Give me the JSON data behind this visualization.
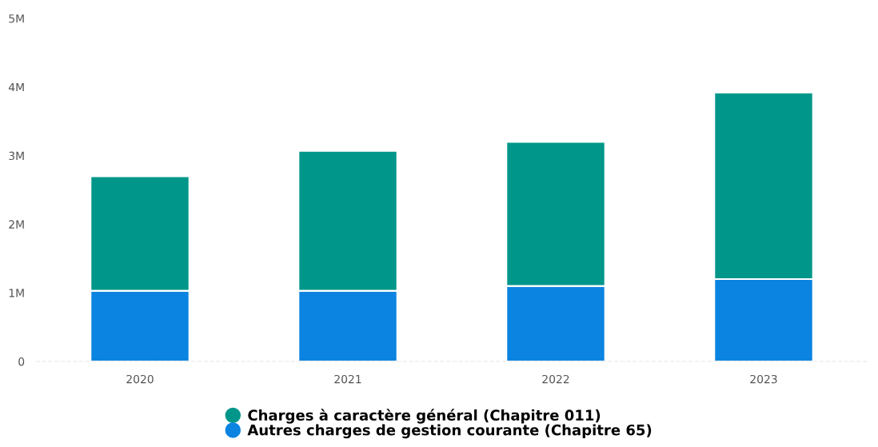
{
  "chart_data": {
    "type": "bar",
    "stacked": true,
    "categories": [
      "2020",
      "2021",
      "2022",
      "2023"
    ],
    "series": [
      {
        "name": "Autres charges de gestion courante (Chapitre 65)",
        "color": "#0a84e0",
        "values": [
          1030000,
          1030000,
          1100000,
          1200000
        ]
      },
      {
        "name": "Charges à caractère général (Chapitre 011)",
        "color": "#00978a",
        "values": [
          1670000,
          2040000,
          2100000,
          2720000
        ]
      }
    ],
    "ylim": [
      0,
      5000000
    ],
    "yticks": [
      0,
      {
        "value": 1000000,
        "label": "1M"
      },
      {
        "value": 2000000,
        "label": "2M"
      },
      {
        "value": 3000000,
        "label": "3M"
      },
      {
        "value": 4000000,
        "label": "4M"
      },
      {
        "value": 5000000,
        "label": "5M"
      }
    ],
    "grid": false,
    "legend": "bottom"
  }
}
